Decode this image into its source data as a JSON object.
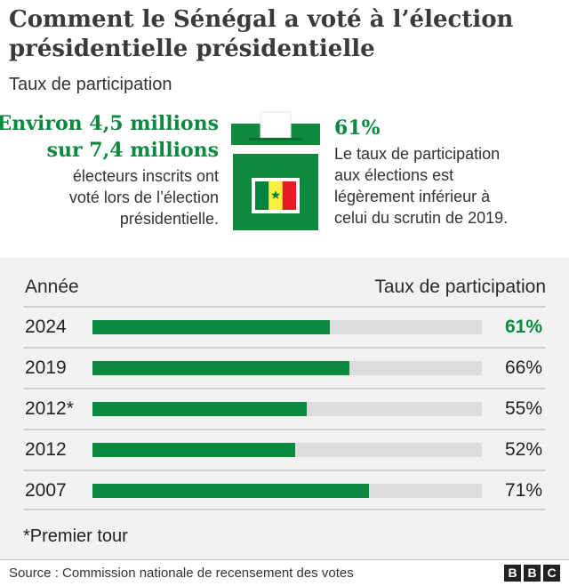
{
  "header": {
    "title": "Comment le Sénégal a voté à l’élection présidentielle présidentielle",
    "subtitle": "Taux de participation"
  },
  "summary": {
    "left_line1": "Environ 4,5 millions",
    "left_line2": "sur 7,4 millions",
    "left_desc_1": "électeurs inscrits ont",
    "left_desc_2": "voté lors de l’élection",
    "left_desc_3": "présidentielle.",
    "right_value": "61%",
    "right_desc_1": "Le taux de participation",
    "right_desc_2": "aux élections est",
    "right_desc_3": "légèrement inférieur à",
    "right_desc_4": "celui du scrutin de 2019."
  },
  "ballot_box": {
    "icon": "ballot-box-icon",
    "flag": "senegal-flag",
    "box_color": "#0e8a3f",
    "flag_colors": [
      "#00853f",
      "#fdef42",
      "#e31b23"
    ]
  },
  "chart_data": {
    "type": "bar",
    "orientation": "horizontal",
    "column_headers": [
      "Année",
      "Taux de participation"
    ],
    "categories": [
      "2024",
      "2019",
      "2012*",
      "2012",
      "2007"
    ],
    "values": [
      61,
      66,
      55,
      52,
      71
    ],
    "value_labels": [
      "61%",
      "66%",
      "55%",
      "52%",
      "71%"
    ],
    "unit": "%",
    "xlim": [
      0,
      100
    ],
    "highlight_index": 0
  },
  "colors": {
    "accent": "#0a8a3e",
    "bar": "#0a8a3e",
    "track": "#dddddd",
    "panel": "#f2f2f2"
  },
  "footer": {
    "note": "*Premier tour",
    "source": "Source : Commission nationale de recensement des votes",
    "logo_letters": [
      "B",
      "B",
      "C"
    ]
  }
}
